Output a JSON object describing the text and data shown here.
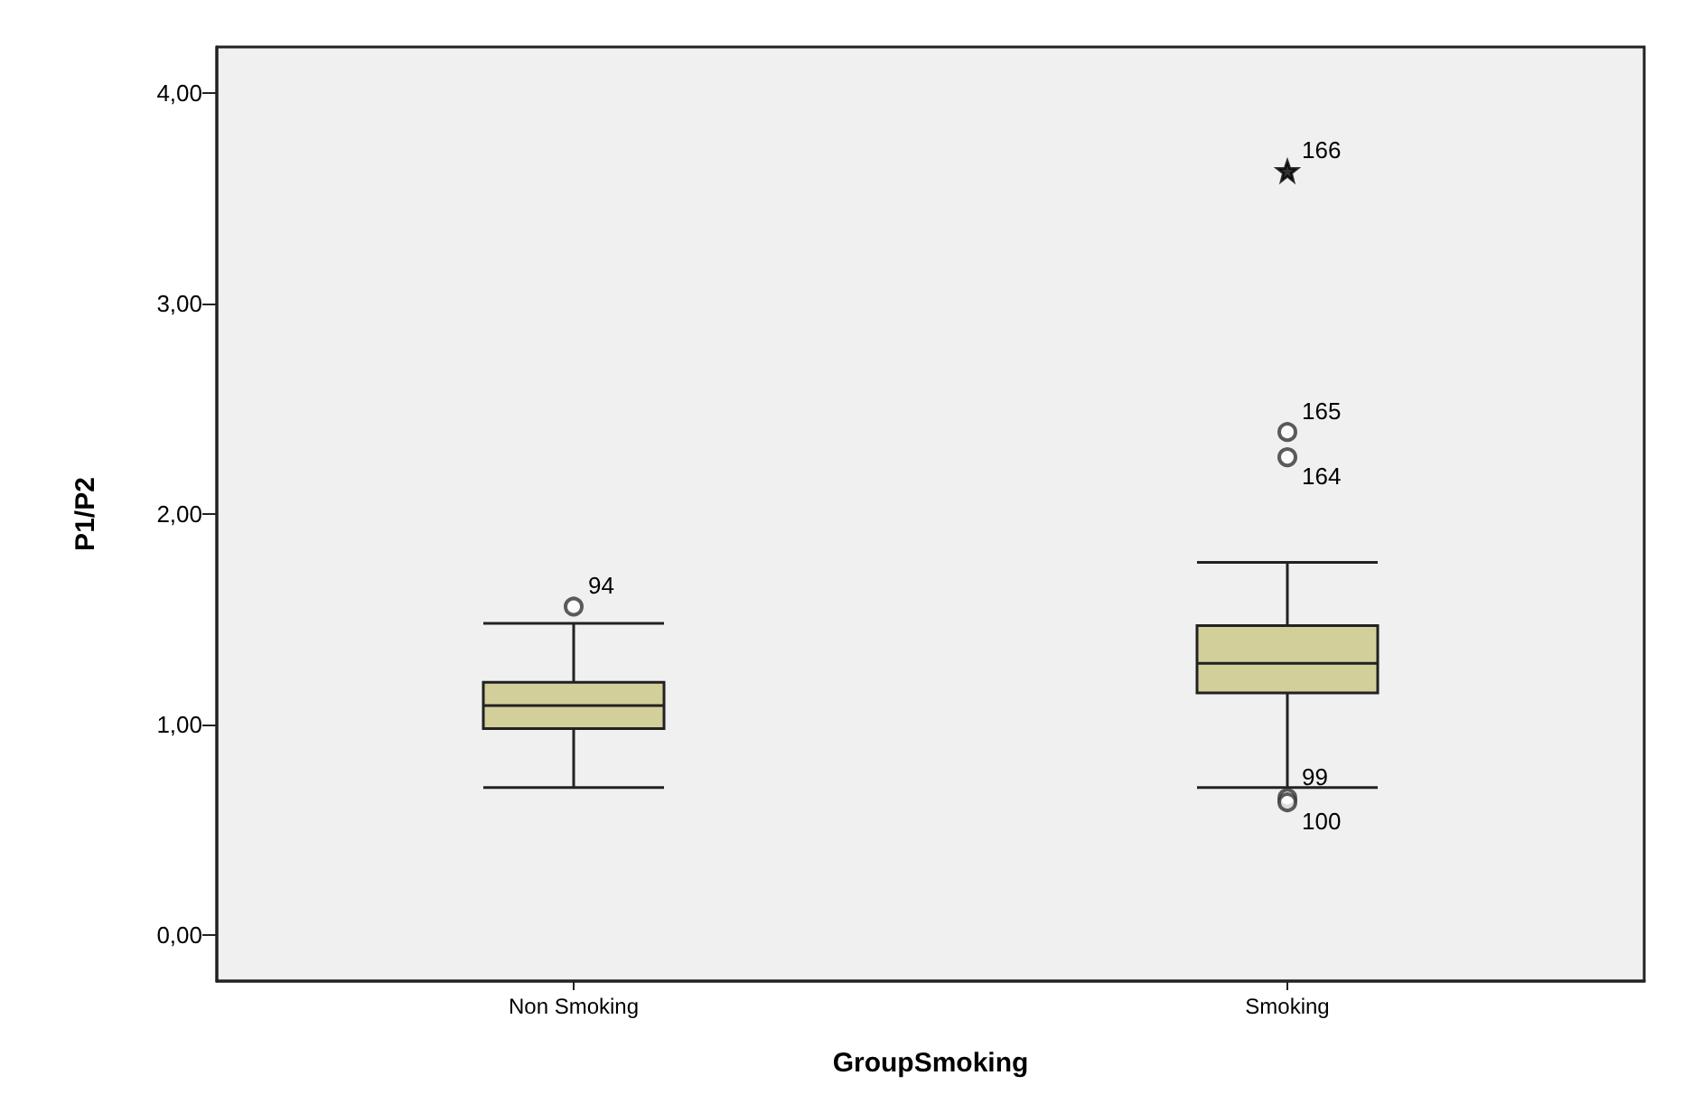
{
  "chart_data": {
    "type": "box",
    "xlabel": "GroupSmoking",
    "ylabel": "P1/P2",
    "categories": [
      "Non Smoking",
      "Smoking"
    ],
    "series": [
      {
        "color": "#d3cf9b",
        "boxes": [
          {
            "low": 0.7,
            "q1": 0.98,
            "median": 1.09,
            "q3": 1.2,
            "high": 1.48
          },
          {
            "low": 0.7,
            "q1": 1.15,
            "median": 1.29,
            "q3": 1.47,
            "high": 1.77
          }
        ]
      },
      {
        "type": "scatter",
        "color": "#333333",
        "marker": "circle",
        "x": [
          "Non Smoking",
          "Smoking",
          "Smoking",
          "Smoking",
          "Smoking"
        ],
        "values": [
          1.56,
          0.65,
          0.63,
          2.27,
          2.39
        ]
      },
      {
        "type": "scatter",
        "color": "#000000",
        "marker": "star",
        "x": [
          "Smoking"
        ],
        "values": [
          3.63
        ]
      }
    ],
    "ylim": [
      -0.22,
      4.22
    ],
    "yticks": [
      {
        "value": 0,
        "label": "0,00"
      },
      {
        "value": 1,
        "label": "1,00"
      },
      {
        "value": 2,
        "label": "2,00"
      },
      {
        "value": 3,
        "label": "3,00"
      },
      {
        "value": 4,
        "label": "4,00"
      }
    ],
    "grid": false,
    "annotations": [
      {
        "text": "94",
        "x": "Non Smoking",
        "y": 1.56
      },
      {
        "text": "99",
        "x": "Smoking",
        "y": 0.65
      },
      {
        "text": "100",
        "x": "Smoking",
        "y": 0.63
      },
      {
        "text": "164",
        "x": "Smoking",
        "y": 2.27
      },
      {
        "text": "165",
        "x": "Smoking",
        "y": 2.39
      },
      {
        "text": "166",
        "x": "Smoking",
        "y": 3.63
      }
    ]
  }
}
